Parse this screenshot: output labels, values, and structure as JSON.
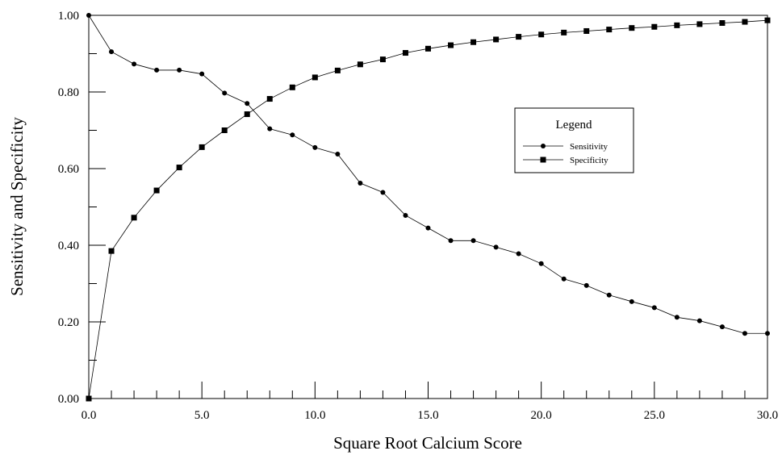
{
  "chart_data": {
    "type": "line",
    "title": "",
    "xlabel": "Square Root Calcium Score",
    "ylabel": "Sensitivity and Specificity",
    "xlim": [
      0,
      30
    ],
    "ylim": [
      0,
      1
    ],
    "x_ticks": [
      0,
      5,
      10,
      15,
      20,
      25,
      30
    ],
    "x_tick_labels": [
      "0.0",
      "5.0",
      "10.0",
      "15.0",
      "20.0",
      "25.0",
      "30.0"
    ],
    "y_ticks": [
      0,
      0.2,
      0.4,
      0.6,
      0.8,
      1.0
    ],
    "y_tick_labels": [
      "0.00",
      "0.20",
      "0.40",
      "0.60",
      "0.80",
      "1.00"
    ],
    "grid": false,
    "legend": {
      "title": "Legend",
      "placement": "right"
    },
    "x": [
      0,
      1,
      2,
      3,
      4,
      5,
      6,
      7,
      8,
      9,
      10,
      11,
      12,
      13,
      14,
      15,
      16,
      17,
      18,
      19,
      20,
      21,
      22,
      23,
      24,
      25,
      26,
      27,
      28,
      29,
      30
    ],
    "series": [
      {
        "name": "Sensitivity",
        "marker": "circle",
        "values": [
          1.0,
          0.905,
          0.873,
          0.857,
          0.857,
          0.847,
          0.797,
          0.77,
          0.704,
          0.688,
          0.655,
          0.638,
          0.562,
          0.538,
          0.478,
          0.445,
          0.412,
          0.412,
          0.395,
          0.378,
          0.352,
          0.312,
          0.295,
          0.27,
          0.253,
          0.237,
          0.212,
          0.203,
          0.187,
          0.17,
          0.17
        ]
      },
      {
        "name": "Specificity",
        "marker": "square",
        "values": [
          0.0,
          0.385,
          0.472,
          0.543,
          0.603,
          0.656,
          0.7,
          0.742,
          0.782,
          0.812,
          0.838,
          0.856,
          0.872,
          0.885,
          0.902,
          0.913,
          0.922,
          0.93,
          0.937,
          0.944,
          0.95,
          0.955,
          0.959,
          0.963,
          0.967,
          0.97,
          0.974,
          0.977,
          0.98,
          0.983,
          0.987
        ]
      }
    ]
  }
}
